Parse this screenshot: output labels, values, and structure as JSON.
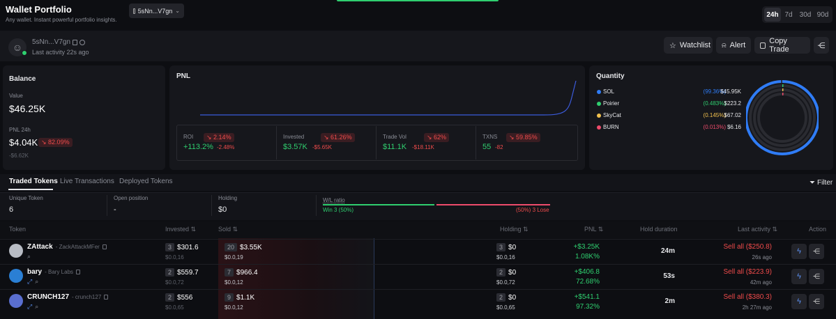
{
  "header": {
    "title": "Wallet Portfolio",
    "subtitle": "Any wallet. Instant powerful portfolio insights.",
    "wallet_selector": "5sNn...V7gn",
    "timeframes": [
      "24h",
      "7d",
      "30d",
      "90d"
    ],
    "active_timeframe": "24h"
  },
  "profile": {
    "name": "5sNn...V7gn",
    "last_activity": "Last activity 22s ago",
    "buttons": {
      "watchlist": "Watchlist",
      "alert": "Alert",
      "copy_trade": "Copy Trade"
    }
  },
  "balance": {
    "title": "Balance",
    "value_label": "Value",
    "value": "$46.25K",
    "pnl_label": "PNL 24h",
    "pnl_value": "$4.04K",
    "pnl_change": "82.09%",
    "pnl_sub": "-$6.62K"
  },
  "pnl": {
    "title": "PNL",
    "line_color": "#3b5bdb",
    "stats": [
      {
        "label": "ROI",
        "change": "2.14%",
        "value": "+113.2%",
        "sub": "-2.48%"
      },
      {
        "label": "Invested",
        "change": "61.26%",
        "value": "$3.57K",
        "sub": "-$5.65K"
      },
      {
        "label": "Trade Vol",
        "change": "62%",
        "value": "$11.1K",
        "sub": "-$18.11K"
      },
      {
        "label": "TXNS",
        "change": "59.85%",
        "value": "55",
        "sub": "-82"
      }
    ]
  },
  "quantity": {
    "title": "Quantity",
    "items": [
      {
        "name": "SOL",
        "pct": "(99.36%)",
        "value": "$45.95K",
        "color": "#2f7cf6",
        "fraction": 0.9936
      },
      {
        "name": "Poirier",
        "pct": "(0.483%)",
        "value": "$223.2",
        "color": "#2fcf6f",
        "fraction": 0.00483
      },
      {
        "name": "SkyCat",
        "pct": "(0.145%)",
        "value": "$67.02",
        "color": "#f2c14e",
        "fraction": 0.00145
      },
      {
        "name": "BURN",
        "pct": "(0.013%)",
        "value": "$6.16",
        "color": "#ef4b6b",
        "fraction": 0.00013
      }
    ]
  },
  "tabs": {
    "items": [
      "Traded Tokens",
      "Live Transactions",
      "Deployed Tokens"
    ],
    "active": "Traded Tokens",
    "filter": "Filter"
  },
  "summary": {
    "unique_label": "Unique Token",
    "unique_value": "6",
    "open_label": "Open position",
    "open_value": "-",
    "holding_label": "Holding",
    "holding_value": "$0",
    "wl_label": "W/L ratio",
    "win_text": "Win 3 (50%)",
    "lose_text": "(50%) 3 Lose",
    "win_fraction": 0.5
  },
  "table": {
    "headers": {
      "token": "Token",
      "invested": "Invested",
      "sold": "Sold",
      "holding": "Holding",
      "pnl": "PNL",
      "hold_duration": "Hold duration",
      "last_activity": "Last activity",
      "action": "Action"
    },
    "rows": [
      {
        "name": "ZAttack",
        "handle": "- ZackAttackMFer",
        "inv_count": "3",
        "invested": "$301.6",
        "inv_sub": "$0.0,16",
        "sold_count": "20",
        "sold": "$3.55K",
        "sold_sub": "$0.0,19",
        "hold_count": "3",
        "holding": "$0",
        "hold_sub": "$0.0,16",
        "pnl": "+$3.25K",
        "pnl_pct": "1.08K%",
        "duration": "24m",
        "sell": "Sell all ($250.8)",
        "ago": "26s ago",
        "avatar_color": "#b8bcc4"
      },
      {
        "name": "bary",
        "handle": "- Bary Labs",
        "inv_count": "2",
        "invested": "$559.7",
        "inv_sub": "$0.0,72",
        "sold_count": "7",
        "sold": "$966.4",
        "sold_sub": "$0.0,12",
        "hold_count": "2",
        "holding": "$0",
        "hold_sub": "$0.0,72",
        "pnl": "+$406.8",
        "pnl_pct": "72.68%",
        "duration": "53s",
        "sell": "Sell all ($223.9)",
        "ago": "42m ago",
        "avatar_color": "#2a7fd4"
      },
      {
        "name": "CRUNCH127",
        "handle": "- crunch127",
        "inv_count": "2",
        "invested": "$556",
        "inv_sub": "$0.0,65",
        "sold_count": "9",
        "sold": "$1.1K",
        "sold_sub": "$0.0,12",
        "hold_count": "2",
        "holding": "$0",
        "hold_sub": "$0.0,65",
        "pnl": "+$541.1",
        "pnl_pct": "97.32%",
        "duration": "2m",
        "sell": "Sell all ($380.3)",
        "ago": "2h 27m ago",
        "avatar_color": "#5a6fd0"
      }
    ]
  }
}
